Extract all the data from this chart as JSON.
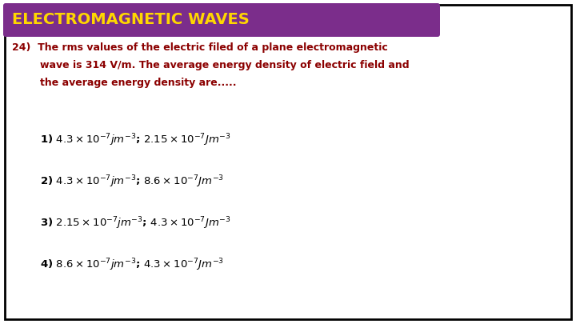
{
  "title": "ELECTROMAGNETIC WAVES",
  "title_bg_color": "#7B2D8B",
  "title_text_color": "#FFD700",
  "border_color": "#000000",
  "bg_color": "#FFFFFF",
  "question_color": "#8B0000",
  "options_color": "#000000",
  "figsize": [
    7.2,
    4.05
  ],
  "dpi": 100,
  "question_lines": [
    "24)  The rms values of the electric filed of a plane electromagnetic",
    "        wave is 314 V/m. The average energy density of electric field and",
    "        the average energy density are....."
  ],
  "option_texts": [
    "1) $4.3\\times 10^{-7}jm^{-3}$; $2.15 \\times 10^{-7}Jm^{-3}$",
    "2) $4.3\\times 10^{-7}jm^{-3}$; $8.6 \\times 10^{-7}Jm^{-3}$",
    "3) $2.15\\times 10^{-7}jm^{-3}$; $4.3 \\times 10^{-7}Jm^{-3}$",
    "4) $8.6 \\times 10^{-7}jm^{-3}$; $4.3 \\times 10^{-7}Jm^{-3}$"
  ]
}
